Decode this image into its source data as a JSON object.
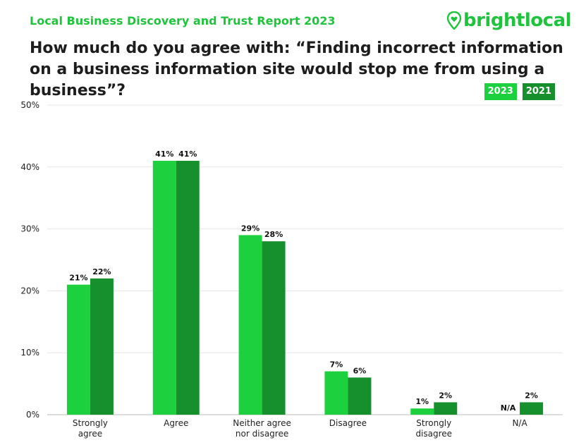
{
  "header": {
    "report_title": "Local Business Discovery and Trust Report 2023",
    "brand": "brightlocal",
    "brand_icon": "map-pin-heart-icon",
    "question": "How much do you agree with: “Finding incorrect information on a business information site would stop me from using a business”?"
  },
  "colors": {
    "accent": "#1fc43c",
    "series_2023": "#1dd13e",
    "series_2021": "#15902c",
    "grid": "#e6e6e6"
  },
  "chart_data": {
    "type": "bar",
    "categories": [
      [
        "Strongly",
        "agree"
      ],
      [
        "Agree"
      ],
      [
        "Neither agree",
        "nor disagree"
      ],
      [
        "Disagree"
      ],
      [
        "Strongly",
        "disagree"
      ],
      [
        "N/A"
      ]
    ],
    "series": [
      {
        "name": "2023",
        "values": [
          21,
          41,
          29,
          7,
          1,
          null
        ],
        "labels": [
          "21%",
          "41%",
          "29%",
          "7%",
          "1%",
          "N/A"
        ]
      },
      {
        "name": "2021",
        "values": [
          22,
          41,
          28,
          6,
          2,
          2
        ],
        "labels": [
          "22%",
          "41%",
          "28%",
          "6%",
          "2%",
          "2%"
        ]
      }
    ],
    "ylim": [
      0,
      50
    ],
    "yticks": [
      "0%",
      "10%",
      "20%",
      "30%",
      "40%",
      "50%"
    ],
    "grid": true,
    "legend_position": "top-right"
  }
}
